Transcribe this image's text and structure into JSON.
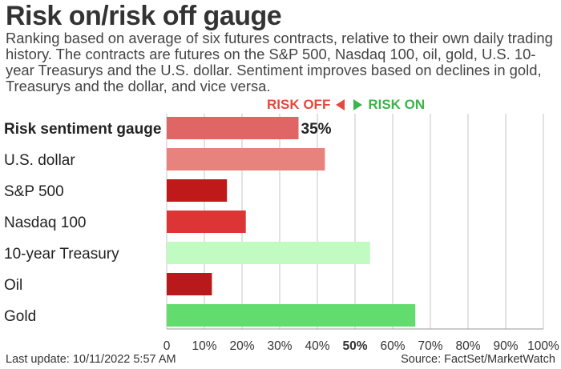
{
  "title": "Risk on/risk off gauge",
  "subtitle": "Ranking based on average of six futures contracts, relative to their own daily trading history. The contracts are futures on the S&P 500, Nasdaq 100, oil, gold, U.S. 10-year Treasurys and the U.S. dollar. Sentiment improves based on declines in gold, Treasurys and the dollar, and vice versa.",
  "legend": {
    "risk_off": "RISK OFF",
    "risk_on": "RISK ON",
    "risk_off_color": "#e4493e",
    "risk_on_color": "#3bb54a"
  },
  "chart_data": {
    "type": "bar",
    "orientation": "horizontal",
    "categories": [
      "Risk sentiment gauge",
      "U.S. dollar",
      "S&P 500",
      "Nasdaq 100",
      "10-year Treasury",
      "Oil",
      "Gold"
    ],
    "values": [
      35,
      42,
      16,
      21,
      54,
      12,
      66
    ],
    "colors": [
      "#e06666",
      "#e8827d",
      "#c0191a",
      "#dd3535",
      "#c2fbc2",
      "#b9191a",
      "#62dd6d"
    ],
    "value_labels": [
      "35%",
      "",
      "",
      "",
      "",
      "",
      ""
    ],
    "bold_categories": [
      "Risk sentiment gauge"
    ],
    "xlim": [
      0,
      100
    ],
    "xticks": [
      "0",
      "10%",
      "20%",
      "30%",
      "40%",
      "50%",
      "60%",
      "70%",
      "80%",
      "90%",
      "100%"
    ],
    "xtick_values": [
      0,
      10,
      20,
      30,
      40,
      50,
      60,
      70,
      80,
      90,
      100
    ],
    "bold_ticks": [
      "50%"
    ],
    "grid": true,
    "xlabel": "",
    "ylabel": ""
  },
  "footer": {
    "last_update": "Last update: 10/11/2022 5:57 AM",
    "source": "Source: FactSet/MarketWatch"
  }
}
